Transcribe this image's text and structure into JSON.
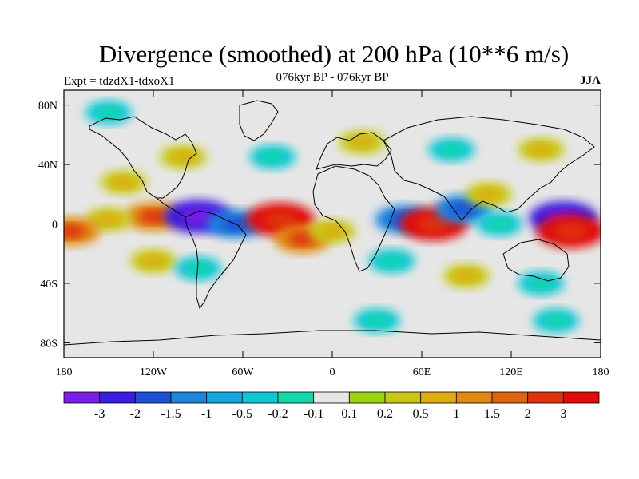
{
  "title": "Divergence (smoothed) at 200 hPa (10**6 m/s)",
  "subtitle": "076kyr BP - 076kyr BP",
  "experiment": "Expt = tdzdX1-tdxoX1",
  "season": "JJA",
  "map": {
    "projection": "cylindrical equidistant",
    "lon_range": [
      -180,
      180
    ],
    "lat_range": [
      -90,
      90
    ],
    "lat_ticks": [
      {
        "value": 80,
        "label": "80N"
      },
      {
        "value": 40,
        "label": "40N"
      },
      {
        "value": 0,
        "label": "0"
      },
      {
        "value": -40,
        "label": "40S"
      },
      {
        "value": -80,
        "label": "80S"
      }
    ],
    "lon_ticks": [
      {
        "value": -180,
        "label": "180"
      },
      {
        "value": -120,
        "label": "120W"
      },
      {
        "value": -60,
        "label": "60W"
      },
      {
        "value": 0,
        "label": "0"
      },
      {
        "value": 60,
        "label": "60E"
      },
      {
        "value": 120,
        "label": "120E"
      },
      {
        "value": 180,
        "label": "180"
      }
    ],
    "background_color": "#e6e6e6",
    "features": [
      {
        "lon": -120,
        "lat": 5,
        "level": 2
      },
      {
        "lon": -150,
        "lat": 3,
        "level": 1
      },
      {
        "lon": -90,
        "lat": 5,
        "level": -3
      },
      {
        "lon": -65,
        "lat": 0,
        "level": -2
      },
      {
        "lon": -35,
        "lat": 3,
        "level": 3
      },
      {
        "lon": -175,
        "lat": -5,
        "level": 2
      },
      {
        "lon": -20,
        "lat": -10,
        "level": 2
      },
      {
        "lon": 0,
        "lat": -5,
        "level": 1
      },
      {
        "lon": 48,
        "lat": 3,
        "level": -2
      },
      {
        "lon": 68,
        "lat": 0,
        "level": 3
      },
      {
        "lon": 88,
        "lat": 10,
        "level": -2
      },
      {
        "lon": 105,
        "lat": 20,
        "level": 1
      },
      {
        "lon": 112,
        "lat": 0,
        "level": -1
      },
      {
        "lon": 155,
        "lat": 4,
        "level": -3
      },
      {
        "lon": 160,
        "lat": -5,
        "level": 3
      },
      {
        "lon": -140,
        "lat": 28,
        "level": 1
      },
      {
        "lon": -100,
        "lat": 45,
        "level": 1
      },
      {
        "lon": -40,
        "lat": 45,
        "level": -1
      },
      {
        "lon": 20,
        "lat": 55,
        "level": 1
      },
      {
        "lon": 80,
        "lat": 50,
        "level": -1
      },
      {
        "lon": 140,
        "lat": 50,
        "level": 1
      },
      {
        "lon": -120,
        "lat": -25,
        "level": 1
      },
      {
        "lon": -90,
        "lat": -30,
        "level": -1
      },
      {
        "lon": 40,
        "lat": -25,
        "level": -1
      },
      {
        "lon": 90,
        "lat": -35,
        "level": 1
      },
      {
        "lon": 140,
        "lat": -40,
        "level": -1
      },
      {
        "lon": -150,
        "lat": 75,
        "level": -1
      },
      {
        "lon": 30,
        "lat": -65,
        "level": -1
      },
      {
        "lon": 150,
        "lat": -65,
        "level": -1
      }
    ]
  },
  "colorbar": {
    "colors": [
      "#7a1fe6",
      "#3a1fe0",
      "#1e50d8",
      "#1e84dc",
      "#12a8dc",
      "#10c8d4",
      "#14d8a8",
      "#e6e6e6",
      "#9ad414",
      "#c8c814",
      "#dcac10",
      "#e08a10",
      "#e0640e",
      "#e0320e",
      "#e00c0c"
    ],
    "labels": [
      "-3",
      "-2",
      "-1.5",
      "-1",
      "-0.5",
      "-0.2",
      "-0.1",
      "0.1",
      "0.2",
      "0.5",
      "1",
      "1.5",
      "2",
      "3"
    ]
  }
}
